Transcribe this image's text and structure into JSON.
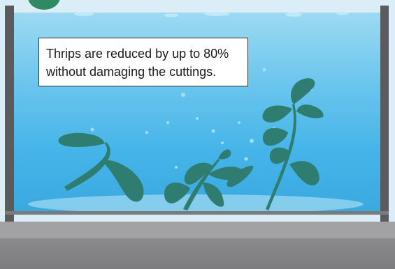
{
  "info_box": {
    "text": "Thrips are reduced by up to 80%\nwithout damaging the cuttings."
  },
  "colors": {
    "water_top": "#9ddaf2",
    "water_bottom": "#3aa9e0",
    "tank_frame": "#5b5b5d",
    "leaf": "#2e7d70",
    "base": "#8a8a8c",
    "logo": "#2f8a63"
  },
  "icons": [
    "logo-badge-icon",
    "cutting-icon",
    "bubble-icon"
  ]
}
